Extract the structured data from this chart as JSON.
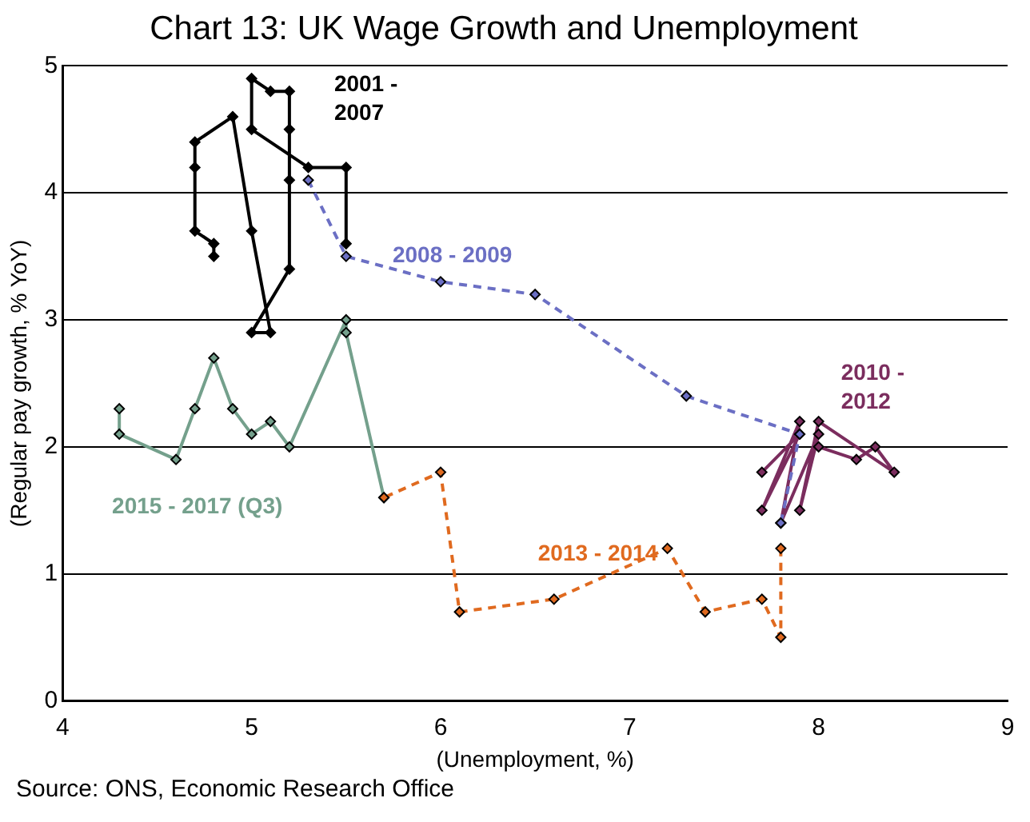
{
  "chart_data": {
    "type": "line",
    "title": "Chart 13: UK Wage Growth and Unemployment",
    "xlabel": "(Unemployment, %)",
    "ylabel": "(Regular pay growth, % YoY)",
    "xlim": [
      4,
      9
    ],
    "xticks": [
      4,
      5,
      6,
      7,
      8,
      9
    ],
    "ylim": [
      0,
      5
    ],
    "yticks": [
      0,
      1,
      2,
      3,
      4,
      5
    ],
    "grid": "y",
    "legend": false,
    "marker": "diamond",
    "series": [
      {
        "name": "2001 - 2007",
        "color": "#000000",
        "line_style": "solid",
        "x": [
          4.8,
          4.8,
          4.7,
          4.7,
          4.7,
          4.9,
          5.0,
          5.1,
          5.0,
          5.2,
          5.2,
          5.2,
          5.2,
          5.1,
          5.0,
          5.0,
          5.3,
          5.5,
          5.5
        ],
        "values": [
          3.5,
          3.6,
          3.7,
          4.2,
          4.4,
          4.6,
          3.7,
          2.9,
          2.9,
          3.4,
          4.1,
          4.5,
          4.8,
          4.8,
          4.9,
          4.5,
          4.2,
          4.2,
          3.6
        ]
      },
      {
        "name": "2008 - 2009",
        "color": "#6b6fc4",
        "line_style": "dashed",
        "x": [
          5.3,
          5.5,
          6.0,
          6.5,
          7.3,
          7.9,
          7.8
        ],
        "values": [
          4.1,
          3.5,
          3.3,
          3.2,
          2.4,
          2.1,
          1.4
        ]
      },
      {
        "name": "2010 - 2012",
        "color": "#7b2d5e",
        "line_style": "solid",
        "x": [
          7.7,
          7.9,
          7.7,
          7.9,
          7.8,
          8.0,
          7.9,
          8.0,
          8.4,
          8.3,
          8.2,
          8.0
        ],
        "values": [
          1.8,
          2.1,
          1.5,
          2.2,
          1.4,
          2.1,
          1.5,
          2.2,
          1.8,
          2.0,
          1.9,
          2.0
        ]
      },
      {
        "name": "2013 - 2014",
        "color": "#e06a1f",
        "line_style": "dashed",
        "x": [
          7.8,
          7.8,
          7.7,
          7.4,
          7.2,
          6.6,
          6.1,
          6.0,
          5.7
        ],
        "values": [
          1.2,
          0.5,
          0.8,
          0.7,
          1.2,
          0.8,
          0.7,
          1.8,
          1.6
        ]
      },
      {
        "name": "2015 - 2017 (Q3)",
        "color": "#74a08c",
        "line_style": "solid",
        "x": [
          5.7,
          5.5,
          5.5,
          5.2,
          5.1,
          5.0,
          4.9,
          4.8,
          4.7,
          4.6,
          4.3,
          4.3
        ],
        "values": [
          1.6,
          2.9,
          3.0,
          2.0,
          2.2,
          2.1,
          2.3,
          2.7,
          2.3,
          1.9,
          2.1,
          2.3
        ]
      }
    ],
    "annotations": [
      "Source: ONS, Economic Research Office"
    ]
  }
}
